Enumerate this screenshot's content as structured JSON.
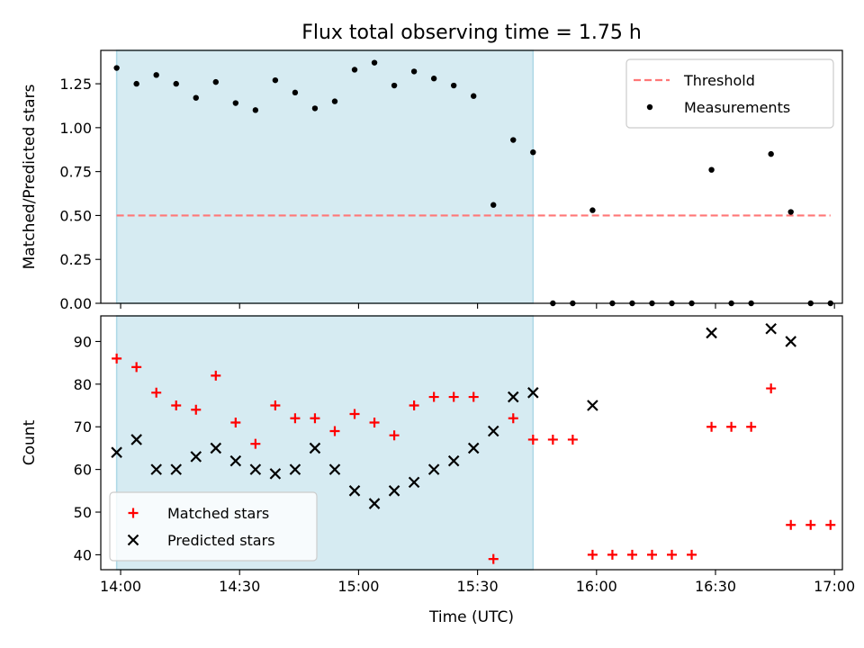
{
  "chart_data": {
    "title": "Flux total observing time = 1.75 h",
    "type": "scatter",
    "x_unit": "Time (UTC)",
    "x_tick_labels": [
      "14:00",
      "14:30",
      "15:00",
      "15:30",
      "16:00",
      "16:30",
      "17:00"
    ],
    "x_ticks": [
      "14:00",
      "14:30",
      "15:00",
      "15:30",
      "16:00",
      "16:30",
      "17:00"
    ],
    "xlim": [
      "13:55",
      "17:02"
    ],
    "shaded_span": [
      "13:59",
      "15:44"
    ],
    "shade_color": "#add8e6",
    "panels": [
      {
        "id": "top",
        "type": "scatter",
        "ylabel": "Matched/Predicted stars",
        "ylim": [
          0.0,
          1.44
        ],
        "y_ticks": [
          0.0,
          0.25,
          0.5,
          0.75,
          1.0,
          1.25
        ],
        "y_tick_labels": [
          "0.00",
          "0.25",
          "0.50",
          "0.75",
          "1.00",
          "1.25",
          ""
        ],
        "legend_position": "upper right",
        "threshold": {
          "name": "Threshold",
          "value": 0.5,
          "x_range": [
            "13:59",
            "16:59"
          ],
          "color": "#ff7777",
          "style": "dashed"
        },
        "series": [
          {
            "name": "Measurements",
            "marker": "dot",
            "color": "#000000",
            "x": [
              "13:59",
              "14:04",
              "14:09",
              "14:14",
              "14:19",
              "14:24",
              "14:29",
              "14:34",
              "14:39",
              "14:44",
              "14:49",
              "14:54",
              "14:59",
              "15:04",
              "15:09",
              "15:14",
              "15:19",
              "15:24",
              "15:29",
              "15:34",
              "15:39",
              "15:44",
              "15:49",
              "15:54",
              "15:59",
              "16:04",
              "16:09",
              "16:14",
              "16:19",
              "16:24",
              "16:29",
              "16:34",
              "16:39",
              "16:44",
              "16:49",
              "16:54",
              "16:59"
            ],
            "y": [
              1.34,
              1.25,
              1.3,
              1.25,
              1.17,
              1.26,
              1.14,
              1.1,
              1.27,
              1.2,
              1.11,
              1.15,
              1.33,
              1.37,
              1.24,
              1.32,
              1.28,
              1.24,
              1.18,
              0.56,
              0.93,
              0.86,
              0.0,
              0.0,
              0.53,
              0.0,
              0.0,
              0.0,
              0.0,
              0.0,
              0.76,
              0.0,
              0.0,
              0.85,
              0.52,
              0.0,
              0.0
            ]
          }
        ]
      },
      {
        "id": "bottom",
        "type": "scatter",
        "ylabel": "Count",
        "xlabel": "Time (UTC)",
        "ylim": [
          36.5,
          96.0
        ],
        "y_ticks": [
          40,
          50,
          60,
          70,
          80,
          90
        ],
        "legend_position": "lower left",
        "series": [
          {
            "name": "Matched stars",
            "marker": "plus",
            "color": "#ff0000",
            "x": [
              "13:59",
              "14:04",
              "14:09",
              "14:14",
              "14:19",
              "14:24",
              "14:29",
              "14:34",
              "14:39",
              "14:44",
              "14:49",
              "14:54",
              "14:59",
              "15:04",
              "15:09",
              "15:14",
              "15:19",
              "15:24",
              "15:29",
              "15:34",
              "15:39",
              "15:44",
              "15:49",
              "15:54",
              "15:59",
              "16:04",
              "16:09",
              "16:14",
              "16:19",
              "16:24",
              "16:29",
              "16:34",
              "16:39",
              "16:44",
              "16:49",
              "16:54",
              "16:59"
            ],
            "y": [
              86,
              84,
              78,
              75,
              74,
              82,
              71,
              66,
              75,
              72,
              72,
              69,
              73,
              71,
              68,
              75,
              77,
              77,
              77,
              39,
              72,
              67,
              67,
              67,
              40,
              40,
              40,
              40,
              40,
              40,
              70,
              70,
              70,
              79,
              47,
              47,
              47
            ]
          },
          {
            "name": "Predicted stars",
            "marker": "x",
            "color": "#000000",
            "x": [
              "13:59",
              "14:04",
              "14:09",
              "14:14",
              "14:19",
              "14:24",
              "14:29",
              "14:34",
              "14:39",
              "14:44",
              "14:49",
              "14:54",
              "14:59",
              "15:04",
              "15:09",
              "15:14",
              "15:19",
              "15:24",
              "15:29",
              "15:34",
              "15:39",
              "15:44",
              "15:59",
              "16:29",
              "16:44",
              "16:49"
            ],
            "y": [
              64,
              67,
              60,
              60,
              63,
              65,
              62,
              60,
              59,
              60,
              65,
              60,
              55,
              52,
              55,
              57,
              60,
              62,
              65,
              69,
              77,
              78,
              75,
              92,
              93,
              90
            ]
          }
        ]
      }
    ]
  }
}
